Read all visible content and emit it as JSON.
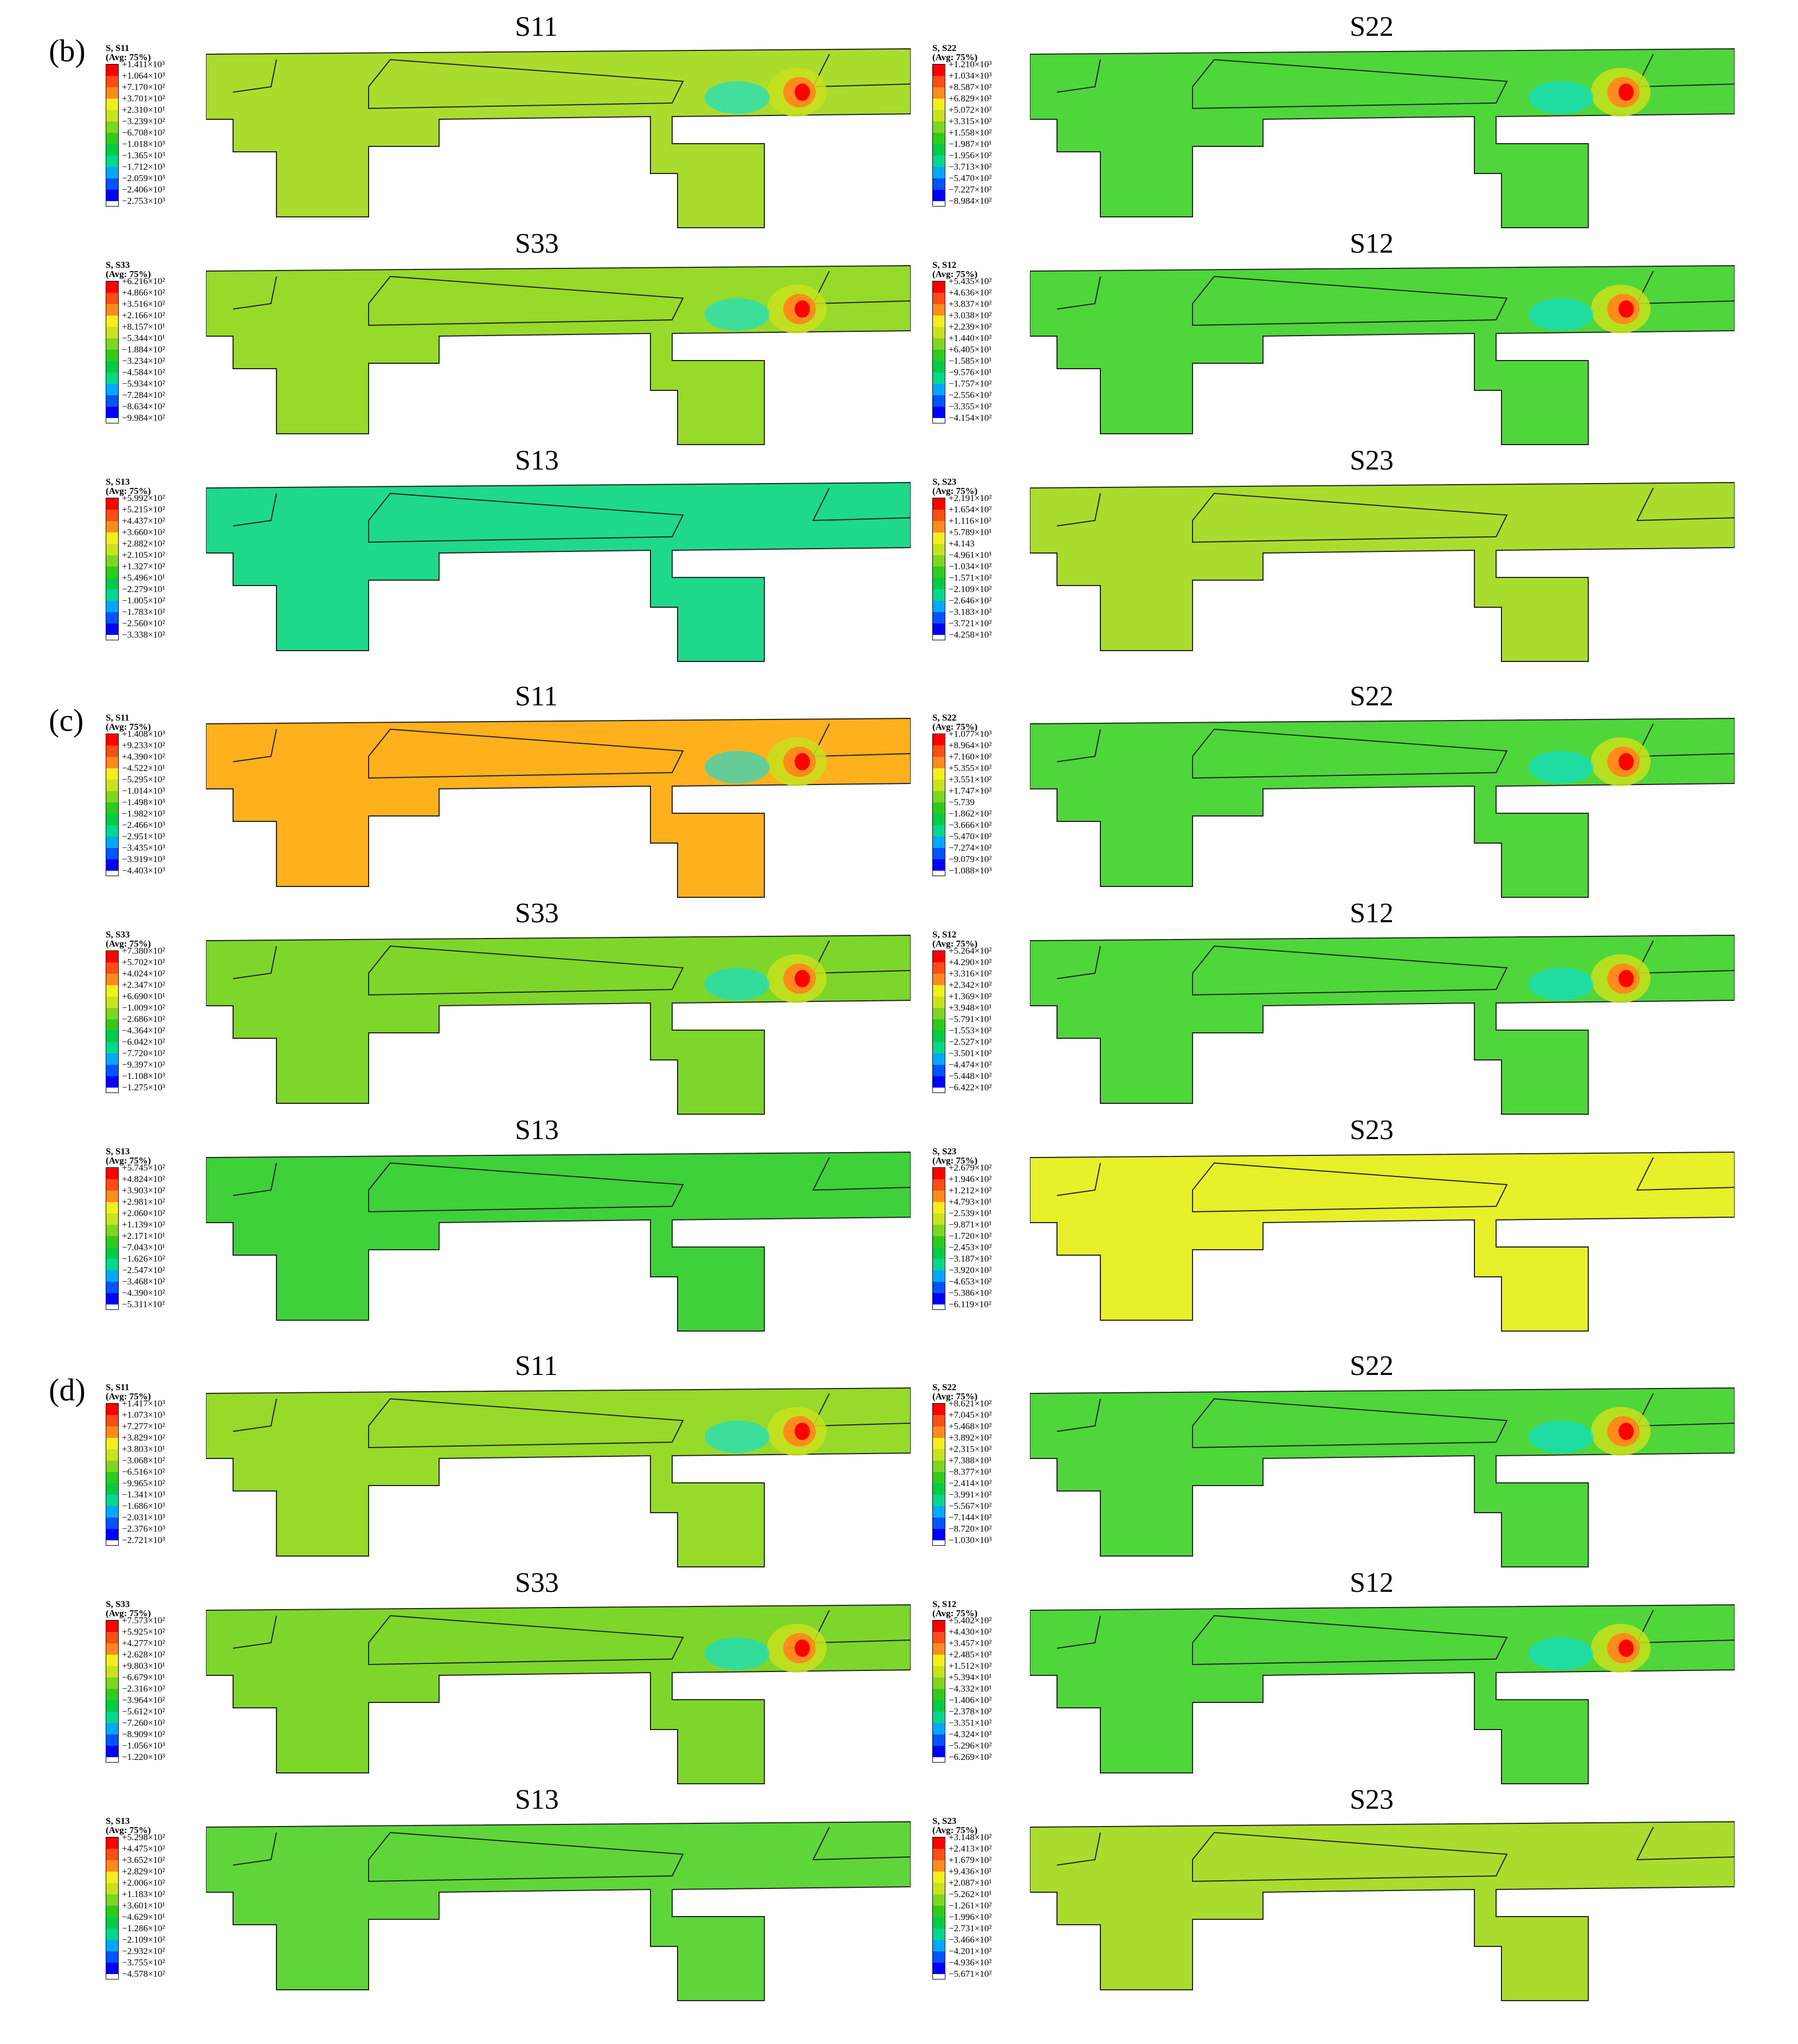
{
  "colormap": [
    "#0000ff",
    "#0054ff",
    "#00a8ff",
    "#00e0e8",
    "#00d98c",
    "#00cc44",
    "#2ecc1a",
    "#7fd61e",
    "#c8e21c",
    "#f3ee1c",
    "#ffc91c",
    "#ff8c1a",
    "#ff4d14",
    "#ff0000"
  ],
  "sections": [
    {
      "label": "(b)",
      "panels": [
        {
          "title": "S11",
          "legend_head": "S, S11\n(Avg: 75%)",
          "ticks": [
            "+1.411×10³",
            "+1.064×10³",
            "+7.170×10²",
            "+3.701×10²",
            "+2.310×10¹",
            "−3.239×10²",
            "−6.708×10²",
            "−1.018×10³",
            "−1.365×10³",
            "−1.712×10³",
            "−2.059×10³",
            "−2.406×10³",
            "−2.753×10³"
          ],
          "fill": "#a9dc2c",
          "hot": true
        },
        {
          "title": "S22",
          "legend_head": "S, S22\n(Avg: 75%)",
          "ticks": [
            "+1.210×10³",
            "+1.034×10³",
            "+8.587×10²",
            "+6.829×10²",
            "+5.072×10²",
            "+3.315×10²",
            "+1.558×10²",
            "−1.987×10¹",
            "−1.956×10²",
            "−3.713×10²",
            "−5.470×10²",
            "−7.227×10²",
            "−8.984×10²"
          ],
          "fill": "#4ed63a",
          "hot": true
        },
        {
          "title": "S33",
          "legend_head": "S, S33\n(Avg: 75%)",
          "ticks": [
            "+6.216×10²",
            "+4.866×10²",
            "+3.516×10²",
            "+2.166×10²",
            "+8.157×10¹",
            "−5.344×10¹",
            "−1.884×10²",
            "−3.234×10²",
            "−4.584×10²",
            "−5.934×10²",
            "−7.284×10²",
            "−8.634×10²",
            "−9.984×10²"
          ],
          "fill": "#98da2a",
          "hot": true
        },
        {
          "title": "S12",
          "legend_head": "S, S12\n(Avg: 75%)",
          "ticks": [
            "+5.435×10²",
            "+4.636×10²",
            "+3.837×10²",
            "+3.038×10²",
            "+2.239×10²",
            "+1.440×10²",
            "+6.405×10¹",
            "−1.585×10¹",
            "−9.576×10¹",
            "−1.757×10²",
            "−2.556×10²",
            "−3.355×10²",
            "−4.154×10²"
          ],
          "fill": "#4ed63a",
          "hot": true
        },
        {
          "title": "S13",
          "legend_head": "S, S13\n(Avg: 75%)",
          "ticks": [
            "+5.992×10²",
            "+5.215×10²",
            "+4.437×10²",
            "+3.660×10²",
            "+2.882×10²",
            "+2.105×10²",
            "+1.327×10²",
            "+5.496×10¹",
            "−2.279×10¹",
            "−1.005×10²",
            "−1.783×10²",
            "−2.560×10²",
            "−3.338×10²"
          ],
          "fill": "#1ed98a",
          "hot": false
        },
        {
          "title": "S23",
          "legend_head": "S, S23\n(Avg: 75%)",
          "ticks": [
            "+2.191×10²",
            "+1.654×10²",
            "+1.116×10²",
            "+5.789×10¹",
            "+4.143",
            "−4.961×10¹",
            "−1.034×10²",
            "−1.571×10²",
            "−2.109×10²",
            "−2.646×10²",
            "−3.183×10²",
            "−3.721×10²",
            "−4.258×10²"
          ],
          "fill": "#a9dc2c",
          "hot": false
        }
      ]
    },
    {
      "label": "(c)",
      "panels": [
        {
          "title": "S11",
          "legend_head": "S, S11\n(Avg: 75%)",
          "ticks": [
            "+1.408×10³",
            "+9.233×10²",
            "+4.390×10²",
            "−4.522×10¹",
            "−5.295×10²",
            "−1.014×10³",
            "−1.498×10³",
            "−1.982×10³",
            "−2.466×10³",
            "−2.951×10³",
            "−3.435×10³",
            "−3.919×10³",
            "−4.403×10³"
          ],
          "fill": "#ffb01c",
          "hot": true
        },
        {
          "title": "S22",
          "legend_head": "S, S22\n(Avg: 75%)",
          "ticks": [
            "+1.077×10³",
            "+8.964×10²",
            "+7.160×10²",
            "+5.355×10²",
            "+3.551×10²",
            "+1.747×10²",
            "−5.739",
            "−1.862×10²",
            "−3.666×10²",
            "−5.470×10²",
            "−7.274×10²",
            "−9.079×10²",
            "−1.088×10³"
          ],
          "fill": "#4ed63a",
          "hot": true
        },
        {
          "title": "S33",
          "legend_head": "S, S33\n(Avg: 75%)",
          "ticks": [
            "+7.380×10²",
            "+5.702×10²",
            "+4.024×10²",
            "+2.347×10²",
            "+6.690×10¹",
            "−1.009×10²",
            "−2.686×10²",
            "−4.364×10²",
            "−6.042×10²",
            "−7.720×10²",
            "−9.397×10²",
            "−1.108×10³",
            "−1.275×10³"
          ],
          "fill": "#7fd62a",
          "hot": true
        },
        {
          "title": "S12",
          "legend_head": "S, S12\n(Avg: 75%)",
          "ticks": [
            "+5.264×10²",
            "+4.290×10²",
            "+3.316×10²",
            "+2.342×10²",
            "+1.369×10²",
            "+3.948×10¹",
            "−5.791×10¹",
            "−1.553×10²",
            "−2.527×10²",
            "−3.501×10²",
            "−4.474×10²",
            "−5.448×10²",
            "−6.422×10²"
          ],
          "fill": "#4ed63a",
          "hot": true
        },
        {
          "title": "S13",
          "legend_head": "S, S13\n(Avg: 75%)",
          "ticks": [
            "+5.745×10²",
            "+4.824×10²",
            "+3.903×10²",
            "+2.981×10²",
            "+2.060×10²",
            "+1.139×10²",
            "+2.171×10¹",
            "−7.043×10¹",
            "−1.626×10²",
            "−2.547×10²",
            "−3.468×10²",
            "−4.390×10²",
            "−5.311×10²"
          ],
          "fill": "#3ed13a",
          "hot": false
        },
        {
          "title": "S23",
          "legend_head": "S, S23\n(Avg: 75%)",
          "ticks": [
            "+2.679×10²",
            "+1.946×10²",
            "+1.212×10²",
            "+4.793×10¹",
            "−2.539×10¹",
            "−9.871×10¹",
            "−1.720×10²",
            "−2.453×10²",
            "−3.187×10²",
            "−3.920×10²",
            "−4.653×10²",
            "−5.386×10²",
            "−6.119×10²"
          ],
          "fill": "#e8f02a",
          "hot": false
        }
      ]
    },
    {
      "label": "(d)",
      "panels": [
        {
          "title": "S11",
          "legend_head": "S, S11\n(Avg: 75%)",
          "ticks": [
            "+1.417×10³",
            "+1.073×10³",
            "+7.277×10²",
            "+3.829×10²",
            "+3.803×10¹",
            "−3.068×10²",
            "−6.516×10²",
            "−9.965×10²",
            "−1.341×10³",
            "−1.686×10³",
            "−2.031×10³",
            "−2.376×10³",
            "−2.721×10³"
          ],
          "fill": "#98da2a",
          "hot": true
        },
        {
          "title": "S22",
          "legend_head": "S, S22\n(Avg: 75%)",
          "ticks": [
            "+8.621×10²",
            "+7.045×10²",
            "+5.468×10²",
            "+3.892×10²",
            "+2.315×10²",
            "+7.388×10¹",
            "−8.377×10¹",
            "−2.414×10²",
            "−3.991×10²",
            "−5.567×10²",
            "−7.144×10²",
            "−8.720×10²",
            "−1.030×10³"
          ],
          "fill": "#4ed63a",
          "hot": true
        },
        {
          "title": "S33",
          "legend_head": "S, S33\n(Avg: 75%)",
          "ticks": [
            "+7.573×10²",
            "+5.925×10²",
            "+4.277×10²",
            "+2.628×10²",
            "+9.803×10¹",
            "−6.679×10¹",
            "−2.316×10²",
            "−3.964×10²",
            "−5.612×10²",
            "−7.260×10²",
            "−8.909×10²",
            "−1.056×10³",
            "−1.220×10³"
          ],
          "fill": "#7fd62a",
          "hot": true
        },
        {
          "title": "S12",
          "legend_head": "S, S12\n(Avg: 75%)",
          "ticks": [
            "+5.402×10²",
            "+4.430×10²",
            "+3.457×10²",
            "+2.485×10²",
            "+1.512×10²",
            "+5.394×10¹",
            "−4.332×10¹",
            "−1.406×10²",
            "−2.378×10²",
            "−3.351×10²",
            "−4.324×10²",
            "−5.296×10²",
            "−6.269×10²"
          ],
          "fill": "#4ed63a",
          "hot": true
        },
        {
          "title": "S13",
          "legend_head": "S, S13\n(Avg: 75%)",
          "ticks": [
            "+5.298×10²",
            "+4.475×10²",
            "+3.652×10²",
            "+2.829×10²",
            "+2.006×10²",
            "+1.183×10²",
            "+3.601×10¹",
            "−4.629×10¹",
            "−1.286×10²",
            "−2.109×10²",
            "−2.932×10²",
            "−3.755×10²",
            "−4.578×10²"
          ],
          "fill": "#5ed63a",
          "hot": false
        },
        {
          "title": "S23",
          "legend_head": "S, S23\n(Avg: 75%)",
          "ticks": [
            "+3.148×10²",
            "+2.413×10²",
            "+1.679×10²",
            "+9.436×10¹",
            "+2.087×10¹",
            "−5.262×10¹",
            "−1.261×10²",
            "−1.996×10²",
            "−2.731×10²",
            "−3.466×10²",
            "−4.201×10²",
            "−4.936×10²",
            "−5.671×10²"
          ],
          "fill": "#a9dc2c",
          "hot": false
        }
      ]
    }
  ]
}
